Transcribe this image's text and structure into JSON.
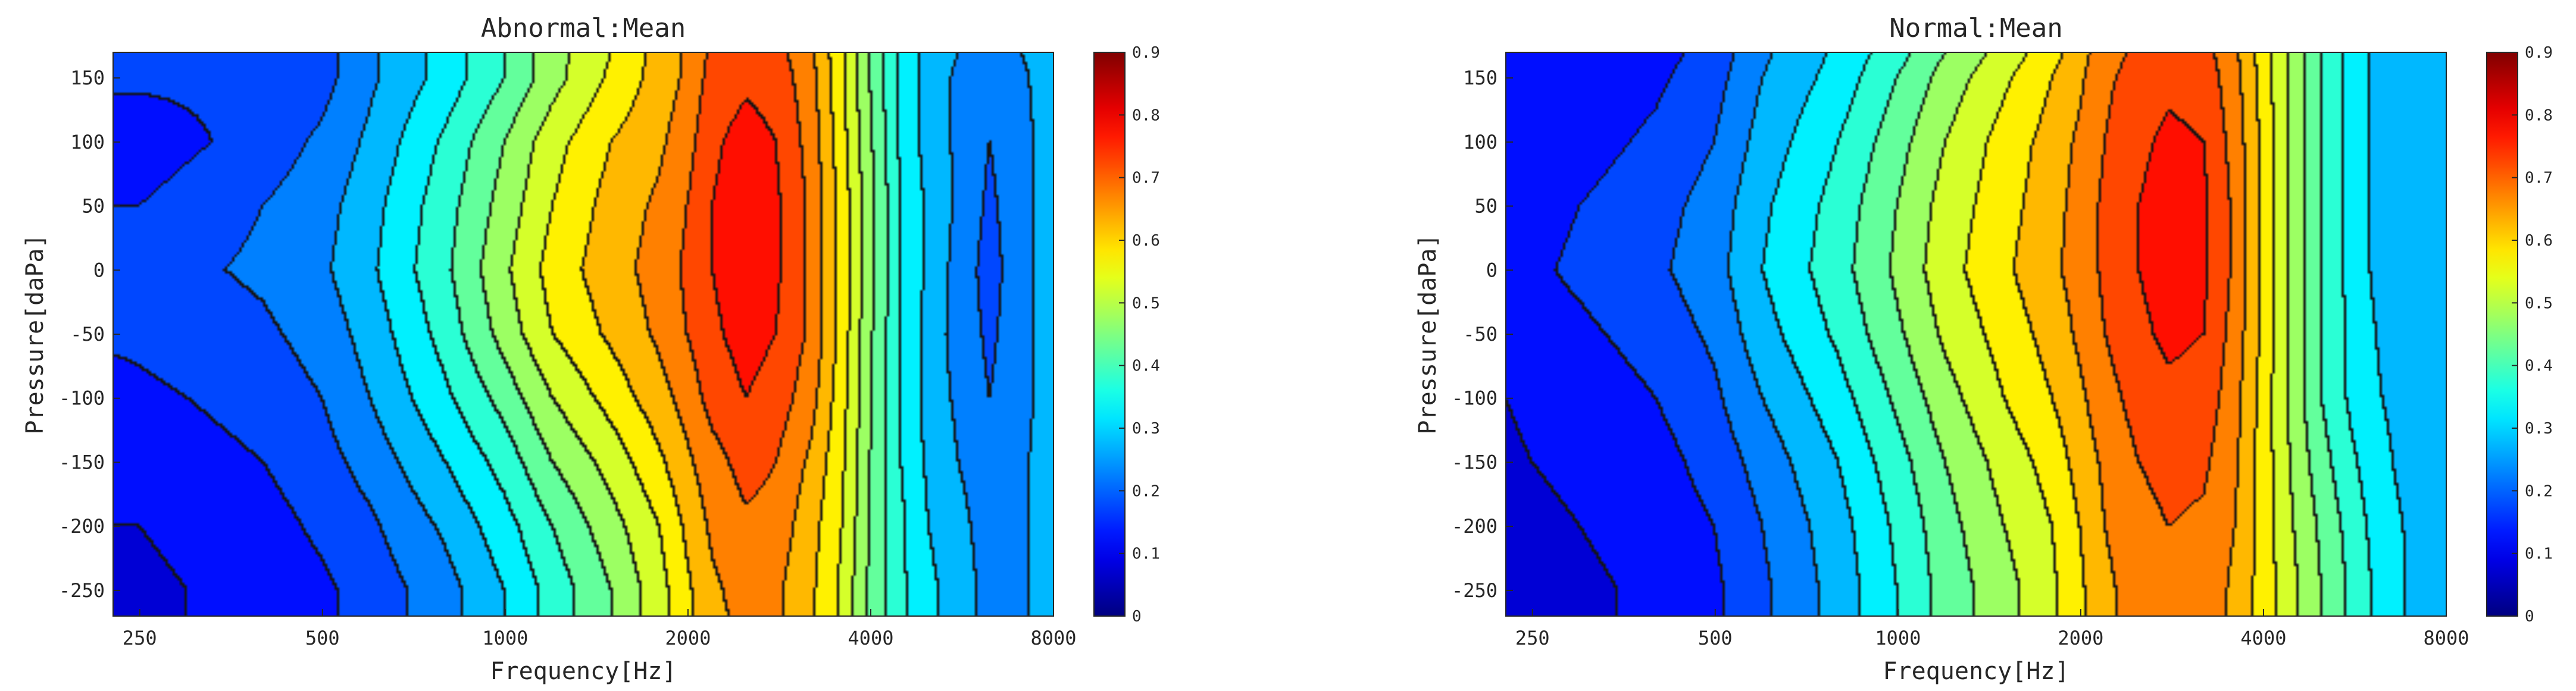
{
  "chart_data": [
    {
      "type": "heatmap",
      "subtype": "filled-contour",
      "title": "Abnormal:Mean",
      "xlabel": "Frequency[Hz]",
      "ylabel": "Pressure[daPa]",
      "x_scale": "log",
      "xlim": [
        226,
        8000
      ],
      "ylim": [
        -270,
        170
      ],
      "x_ticks": [
        250,
        500,
        1000,
        2000,
        4000,
        8000
      ],
      "x_tick_labels": [
        "250",
        "500",
        "1000",
        "2000",
        "4000",
        "8000"
      ],
      "y_ticks": [
        150,
        100,
        50,
        0,
        -50,
        -100,
        -150,
        -200,
        -250
      ],
      "y_tick_labels": [
        "150",
        "100",
        "50",
        "0",
        "-50",
        "-100",
        "-150",
        "-200",
        "-250"
      ],
      "colorbar": {
        "range": [
          0,
          0.9
        ],
        "ticks": [
          0,
          0.1,
          0.2,
          0.3,
          0.4,
          0.5,
          0.6,
          0.7,
          0.8,
          0.9
        ],
        "tick_labels": [
          "0",
          "0.1",
          "0.2",
          "0.3",
          "0.4",
          "0.5",
          "0.6",
          "0.7",
          "0.8",
          "0.9"
        ],
        "colormap": "jet"
      },
      "contour_step": 0.05,
      "frequencies": [
        226,
        250,
        300,
        400,
        500,
        600,
        800,
        1000,
        1200,
        1500,
        1800,
        2000,
        2200,
        2500,
        2800,
        3200,
        3600,
        4000,
        4500,
        5000,
        5600,
        6300,
        7100,
        8000
      ],
      "pressures": [
        170,
        150,
        100,
        50,
        0,
        -50,
        -100,
        -150,
        -200,
        -250,
        -270
      ],
      "values": [
        [
          0.18,
          0.18,
          0.16,
          0.16,
          0.18,
          0.24,
          0.32,
          0.4,
          0.48,
          0.55,
          0.62,
          0.66,
          0.71,
          0.73,
          0.72,
          0.66,
          0.56,
          0.45,
          0.34,
          0.28,
          0.25,
          0.21,
          0.25,
          0.28
        ],
        [
          0.16,
          0.16,
          0.16,
          0.16,
          0.18,
          0.24,
          0.32,
          0.4,
          0.48,
          0.56,
          0.62,
          0.66,
          0.72,
          0.74,
          0.73,
          0.67,
          0.56,
          0.45,
          0.34,
          0.28,
          0.24,
          0.2,
          0.24,
          0.28
        ],
        [
          0.12,
          0.12,
          0.14,
          0.17,
          0.21,
          0.26,
          0.36,
          0.45,
          0.53,
          0.6,
          0.64,
          0.68,
          0.74,
          0.77,
          0.75,
          0.68,
          0.57,
          0.46,
          0.34,
          0.28,
          0.24,
          0.2,
          0.23,
          0.28
        ],
        [
          0.15,
          0.15,
          0.17,
          0.2,
          0.23,
          0.28,
          0.38,
          0.47,
          0.55,
          0.62,
          0.66,
          0.7,
          0.75,
          0.78,
          0.76,
          0.69,
          0.58,
          0.47,
          0.35,
          0.29,
          0.24,
          0.19,
          0.23,
          0.28
        ],
        [
          0.17,
          0.18,
          0.19,
          0.21,
          0.24,
          0.29,
          0.39,
          0.49,
          0.57,
          0.63,
          0.67,
          0.71,
          0.75,
          0.78,
          0.76,
          0.69,
          0.58,
          0.47,
          0.35,
          0.29,
          0.23,
          0.18,
          0.23,
          0.28
        ],
        [
          0.16,
          0.16,
          0.17,
          0.19,
          0.22,
          0.27,
          0.37,
          0.47,
          0.55,
          0.61,
          0.66,
          0.7,
          0.74,
          0.77,
          0.75,
          0.69,
          0.58,
          0.46,
          0.35,
          0.28,
          0.23,
          0.19,
          0.23,
          0.28
        ],
        [
          0.13,
          0.14,
          0.15,
          0.17,
          0.2,
          0.25,
          0.34,
          0.42,
          0.5,
          0.57,
          0.63,
          0.67,
          0.72,
          0.75,
          0.73,
          0.67,
          0.57,
          0.46,
          0.35,
          0.28,
          0.24,
          0.2,
          0.23,
          0.28
        ],
        [
          0.11,
          0.12,
          0.13,
          0.15,
          0.18,
          0.22,
          0.3,
          0.37,
          0.45,
          0.52,
          0.59,
          0.64,
          0.68,
          0.72,
          0.7,
          0.64,
          0.56,
          0.45,
          0.35,
          0.29,
          0.25,
          0.21,
          0.24,
          0.28
        ],
        [
          0.1,
          0.1,
          0.11,
          0.13,
          0.16,
          0.19,
          0.26,
          0.33,
          0.4,
          0.48,
          0.55,
          0.61,
          0.66,
          0.69,
          0.68,
          0.62,
          0.55,
          0.45,
          0.36,
          0.3,
          0.27,
          0.22,
          0.24,
          0.28
        ],
        [
          0.09,
          0.09,
          0.1,
          0.12,
          0.14,
          0.17,
          0.23,
          0.3,
          0.37,
          0.45,
          0.53,
          0.59,
          0.64,
          0.67,
          0.66,
          0.61,
          0.54,
          0.44,
          0.36,
          0.31,
          0.28,
          0.23,
          0.24,
          0.28
        ],
        [
          0.09,
          0.09,
          0.1,
          0.12,
          0.14,
          0.17,
          0.23,
          0.3,
          0.37,
          0.45,
          0.53,
          0.59,
          0.64,
          0.66,
          0.66,
          0.61,
          0.54,
          0.44,
          0.36,
          0.31,
          0.28,
          0.23,
          0.24,
          0.28
        ]
      ]
    },
    {
      "type": "heatmap",
      "subtype": "filled-contour",
      "title": "Normal:Mean",
      "xlabel": "Frequency[Hz]",
      "ylabel": "Pressure[daPa]",
      "x_scale": "log",
      "xlim": [
        226,
        8000
      ],
      "ylim": [
        -270,
        170
      ],
      "x_ticks": [
        250,
        500,
        1000,
        2000,
        4000,
        8000
      ],
      "x_tick_labels": [
        "250",
        "500",
        "1000",
        "2000",
        "4000",
        "8000"
      ],
      "y_ticks": [
        150,
        100,
        50,
        0,
        -50,
        -100,
        -150,
        -200,
        -250
      ],
      "y_tick_labels": [
        "150",
        "100",
        "50",
        "0",
        "-50",
        "-100",
        "-150",
        "-200",
        "-250"
      ],
      "colorbar": {
        "range": [
          0,
          0.9
        ],
        "ticks": [
          0,
          0.1,
          0.2,
          0.3,
          0.4,
          0.5,
          0.6,
          0.7,
          0.8,
          0.9
        ],
        "tick_labels": [
          "0",
          "0.1",
          "0.2",
          "0.3",
          "0.4",
          "0.5",
          "0.6",
          "0.7",
          "0.8",
          "0.9"
        ],
        "colormap": "jet"
      },
      "contour_step": 0.05,
      "frequencies": [
        226,
        250,
        300,
        400,
        500,
        600,
        800,
        1000,
        1200,
        1500,
        1800,
        2000,
        2200,
        2500,
        2800,
        3200,
        3600,
        4000,
        4500,
        5000,
        5600,
        6300,
        7100,
        8000
      ],
      "pressures": [
        170,
        150,
        100,
        50,
        0,
        -50,
        -100,
        -150,
        -200,
        -250,
        -270
      ],
      "values": [
        [
          0.11,
          0.11,
          0.12,
          0.13,
          0.17,
          0.24,
          0.31,
          0.38,
          0.45,
          0.52,
          0.58,
          0.63,
          0.68,
          0.71,
          0.73,
          0.72,
          0.66,
          0.58,
          0.48,
          0.4,
          0.33,
          0.28,
          0.27,
          0.26
        ],
        [
          0.11,
          0.11,
          0.12,
          0.14,
          0.18,
          0.25,
          0.32,
          0.4,
          0.47,
          0.54,
          0.6,
          0.64,
          0.69,
          0.72,
          0.74,
          0.73,
          0.67,
          0.58,
          0.48,
          0.4,
          0.33,
          0.28,
          0.27,
          0.26
        ],
        [
          0.11,
          0.12,
          0.13,
          0.16,
          0.2,
          0.27,
          0.35,
          0.43,
          0.5,
          0.57,
          0.62,
          0.66,
          0.7,
          0.74,
          0.76,
          0.75,
          0.68,
          0.59,
          0.48,
          0.4,
          0.33,
          0.28,
          0.27,
          0.26
        ],
        [
          0.12,
          0.13,
          0.15,
          0.18,
          0.22,
          0.29,
          0.37,
          0.45,
          0.52,
          0.58,
          0.63,
          0.67,
          0.71,
          0.75,
          0.77,
          0.76,
          0.69,
          0.59,
          0.48,
          0.4,
          0.33,
          0.28,
          0.27,
          0.26
        ],
        [
          0.13,
          0.14,
          0.16,
          0.19,
          0.23,
          0.3,
          0.38,
          0.46,
          0.53,
          0.59,
          0.64,
          0.67,
          0.71,
          0.75,
          0.77,
          0.76,
          0.69,
          0.59,
          0.48,
          0.4,
          0.33,
          0.28,
          0.27,
          0.26
        ],
        [
          0.12,
          0.13,
          0.14,
          0.17,
          0.21,
          0.28,
          0.36,
          0.44,
          0.51,
          0.57,
          0.62,
          0.66,
          0.7,
          0.74,
          0.76,
          0.75,
          0.68,
          0.59,
          0.48,
          0.4,
          0.34,
          0.29,
          0.27,
          0.26
        ],
        [
          0.1,
          0.11,
          0.12,
          0.15,
          0.19,
          0.25,
          0.33,
          0.41,
          0.48,
          0.55,
          0.6,
          0.64,
          0.68,
          0.72,
          0.74,
          0.73,
          0.67,
          0.58,
          0.48,
          0.4,
          0.34,
          0.3,
          0.28,
          0.26
        ],
        [
          0.09,
          0.1,
          0.11,
          0.13,
          0.17,
          0.22,
          0.3,
          0.38,
          0.45,
          0.52,
          0.57,
          0.62,
          0.66,
          0.7,
          0.72,
          0.71,
          0.66,
          0.58,
          0.49,
          0.42,
          0.36,
          0.31,
          0.28,
          0.26
        ],
        [
          0.08,
          0.09,
          0.1,
          0.12,
          0.15,
          0.2,
          0.28,
          0.36,
          0.43,
          0.5,
          0.55,
          0.6,
          0.65,
          0.68,
          0.7,
          0.69,
          0.65,
          0.58,
          0.5,
          0.44,
          0.38,
          0.32,
          0.29,
          0.26
        ],
        [
          0.07,
          0.08,
          0.09,
          0.11,
          0.14,
          0.19,
          0.27,
          0.35,
          0.42,
          0.48,
          0.54,
          0.59,
          0.64,
          0.67,
          0.69,
          0.68,
          0.64,
          0.58,
          0.51,
          0.45,
          0.39,
          0.33,
          0.29,
          0.26
        ],
        [
          0.07,
          0.08,
          0.09,
          0.11,
          0.14,
          0.19,
          0.27,
          0.35,
          0.42,
          0.48,
          0.54,
          0.59,
          0.64,
          0.67,
          0.69,
          0.68,
          0.64,
          0.58,
          0.51,
          0.45,
          0.39,
          0.33,
          0.29,
          0.26
        ]
      ]
    }
  ]
}
